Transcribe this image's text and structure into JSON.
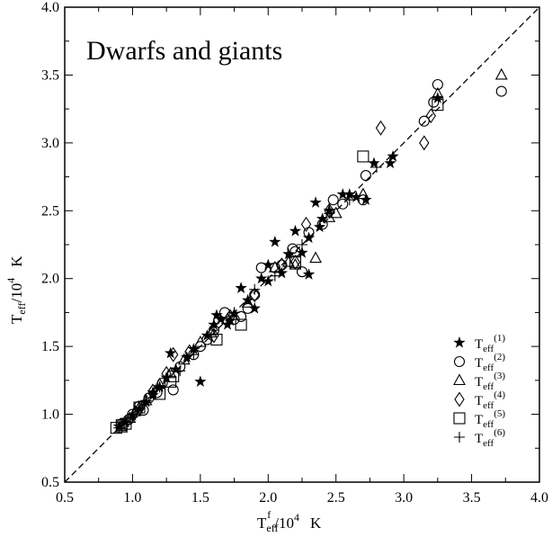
{
  "chart_data": {
    "type": "scatter",
    "title": "Dwarfs and giants",
    "xlabel": {
      "main": "T",
      "sub": "eff",
      "sup": "f",
      "rest": "/10",
      "sup2": "4",
      "unit": "K"
    },
    "ylabel": {
      "main": "T",
      "sub": "eff",
      "rest": "/10",
      "sup2": "4",
      "unit": "K"
    },
    "xlim": [
      0.5,
      4.0
    ],
    "ylim": [
      0.5,
      4.0
    ],
    "xticks": [
      "0.5",
      "1.0",
      "1.5",
      "2.0",
      "2.5",
      "3.0",
      "3.5",
      "4.0"
    ],
    "yticks": [
      "0.5",
      "1.0",
      "1.5",
      "2.0",
      "2.5",
      "3.0",
      "3.5",
      "4.0"
    ],
    "grid": false,
    "reference_line": {
      "style": "dashed",
      "from": [
        0.5,
        0.5
      ],
      "to": [
        4.0,
        4.0
      ]
    },
    "legend_position": "bottom-right",
    "series": [
      {
        "name": "Teff(1)",
        "label_main": "T",
        "label_sub": "eff",
        "label_sup": "(1)",
        "marker": "star",
        "points": [
          [
            0.9,
            0.91
          ],
          [
            0.95,
            0.94
          ],
          [
            1.0,
            0.99
          ],
          [
            1.05,
            1.04
          ],
          [
            1.1,
            1.09
          ],
          [
            1.15,
            1.14
          ],
          [
            1.2,
            1.2
          ],
          [
            1.25,
            1.27
          ],
          [
            1.28,
            1.45
          ],
          [
            1.32,
            1.33
          ],
          [
            1.4,
            1.42
          ],
          [
            1.45,
            1.48
          ],
          [
            1.5,
            1.24
          ],
          [
            1.55,
            1.58
          ],
          [
            1.6,
            1.66
          ],
          [
            1.62,
            1.73
          ],
          [
            1.65,
            1.7
          ],
          [
            1.7,
            1.66
          ],
          [
            1.75,
            1.74
          ],
          [
            1.8,
            1.93
          ],
          [
            1.85,
            1.84
          ],
          [
            1.9,
            1.78
          ],
          [
            1.95,
            2.0
          ],
          [
            2.0,
            2.1
          ],
          [
            2.05,
            2.27
          ],
          [
            2.1,
            2.04
          ],
          [
            2.15,
            2.18
          ],
          [
            2.2,
            2.35
          ],
          [
            2.25,
            2.19
          ],
          [
            2.3,
            2.03
          ],
          [
            2.3,
            2.3
          ],
          [
            2.35,
            2.56
          ],
          [
            2.38,
            2.38
          ],
          [
            2.4,
            2.44
          ],
          [
            2.45,
            2.5
          ],
          [
            2.55,
            2.62
          ],
          [
            2.6,
            2.62
          ],
          [
            2.65,
            2.6
          ],
          [
            2.72,
            2.58
          ],
          [
            2.78,
            2.85
          ],
          [
            2.9,
            2.85
          ],
          [
            2.92,
            2.9
          ],
          [
            3.25,
            3.33
          ],
          [
            2.0,
            1.98
          ],
          [
            1.15,
            1.16
          ],
          [
            1.72,
            1.69
          ]
        ]
      },
      {
        "name": "Teff(2)",
        "label_main": "T",
        "label_sub": "eff",
        "label_sup": "(2)",
        "marker": "circle",
        "points": [
          [
            0.92,
            0.93
          ],
          [
            0.97,
            0.96
          ],
          [
            1.0,
            1.0
          ],
          [
            1.05,
            1.06
          ],
          [
            1.08,
            1.03
          ],
          [
            1.12,
            1.12
          ],
          [
            1.18,
            1.16
          ],
          [
            1.22,
            1.23
          ],
          [
            1.3,
            1.18
          ],
          [
            1.35,
            1.35
          ],
          [
            1.45,
            1.44
          ],
          [
            1.5,
            1.5
          ],
          [
            1.55,
            1.55
          ],
          [
            1.6,
            1.62
          ],
          [
            1.68,
            1.75
          ],
          [
            1.75,
            1.7
          ],
          [
            1.8,
            1.72
          ],
          [
            1.85,
            1.78
          ],
          [
            1.9,
            1.88
          ],
          [
            1.95,
            2.08
          ],
          [
            2.05,
            2.08
          ],
          [
            2.1,
            2.1
          ],
          [
            2.18,
            2.22
          ],
          [
            2.2,
            2.2
          ],
          [
            2.25,
            2.05
          ],
          [
            2.3,
            2.34
          ],
          [
            2.4,
            2.4
          ],
          [
            2.48,
            2.58
          ],
          [
            2.55,
            2.55
          ],
          [
            2.7,
            2.58
          ],
          [
            2.72,
            2.76
          ],
          [
            3.15,
            3.16
          ],
          [
            3.25,
            3.43
          ],
          [
            3.72,
            3.38
          ],
          [
            3.22,
            3.3
          ]
        ]
      },
      {
        "name": "Teff(3)",
        "label_main": "T",
        "label_sub": "eff",
        "label_sup": "(3)",
        "marker": "triangle",
        "points": [
          [
            0.92,
            0.9
          ],
          [
            0.98,
            0.97
          ],
          [
            1.02,
            1.02
          ],
          [
            1.1,
            1.1
          ],
          [
            1.2,
            1.22
          ],
          [
            1.28,
            1.3
          ],
          [
            1.38,
            1.4
          ],
          [
            1.5,
            1.53
          ],
          [
            1.58,
            1.6
          ],
          [
            1.7,
            1.7
          ],
          [
            1.85,
            1.82
          ],
          [
            2.05,
            2.08
          ],
          [
            2.15,
            2.12
          ],
          [
            2.2,
            2.1
          ],
          [
            2.35,
            2.15
          ],
          [
            2.45,
            2.45
          ],
          [
            2.5,
            2.48
          ],
          [
            2.7,
            2.62
          ],
          [
            3.25,
            3.36
          ],
          [
            3.72,
            3.5
          ]
        ]
      },
      {
        "name": "Teff(4)",
        "label_main": "T",
        "label_sub": "eff",
        "label_sup": "(4)",
        "marker": "diamond",
        "points": [
          [
            0.95,
            0.94
          ],
          [
            1.05,
            1.04
          ],
          [
            1.15,
            1.17
          ],
          [
            1.25,
            1.3
          ],
          [
            1.3,
            1.44
          ],
          [
            1.42,
            1.46
          ],
          [
            1.6,
            1.58
          ],
          [
            1.72,
            1.72
          ],
          [
            1.9,
            1.88
          ],
          [
            2.1,
            2.1
          ],
          [
            2.2,
            2.12
          ],
          [
            2.28,
            2.4
          ],
          [
            2.45,
            2.5
          ],
          [
            2.83,
            3.11
          ],
          [
            3.15,
            3.0
          ],
          [
            3.2,
            3.2
          ]
        ]
      },
      {
        "name": "Teff(5)",
        "label_main": "T",
        "label_sub": "eff",
        "label_sup": "(5)",
        "marker": "square",
        "points": [
          [
            0.88,
            0.9
          ],
          [
            0.92,
            0.92
          ],
          [
            0.95,
            0.93
          ],
          [
            1.05,
            1.05
          ],
          [
            1.2,
            1.15
          ],
          [
            1.28,
            1.24
          ],
          [
            1.3,
            1.28
          ],
          [
            1.62,
            1.55
          ],
          [
            1.8,
            1.66
          ],
          [
            2.2,
            2.12
          ],
          [
            2.7,
            2.9
          ],
          [
            3.25,
            3.28
          ]
        ]
      },
      {
        "name": "Teff(6)",
        "label_main": "T",
        "label_sub": "eff",
        "label_sup": "(6)",
        "marker": "plus",
        "points": [
          [
            0.9,
            0.9
          ],
          [
            1.0,
            0.98
          ],
          [
            1.1,
            1.1
          ],
          [
            1.2,
            1.2
          ],
          [
            1.35,
            1.32
          ],
          [
            1.45,
            1.44
          ],
          [
            1.6,
            1.62
          ],
          [
            1.75,
            1.75
          ],
          [
            1.9,
            1.92
          ],
          [
            2.05,
            2.02
          ],
          [
            2.25,
            2.25
          ],
          [
            2.45,
            2.48
          ],
          [
            2.6,
            2.58
          ],
          [
            2.8,
            2.82
          ]
        ]
      }
    ]
  }
}
